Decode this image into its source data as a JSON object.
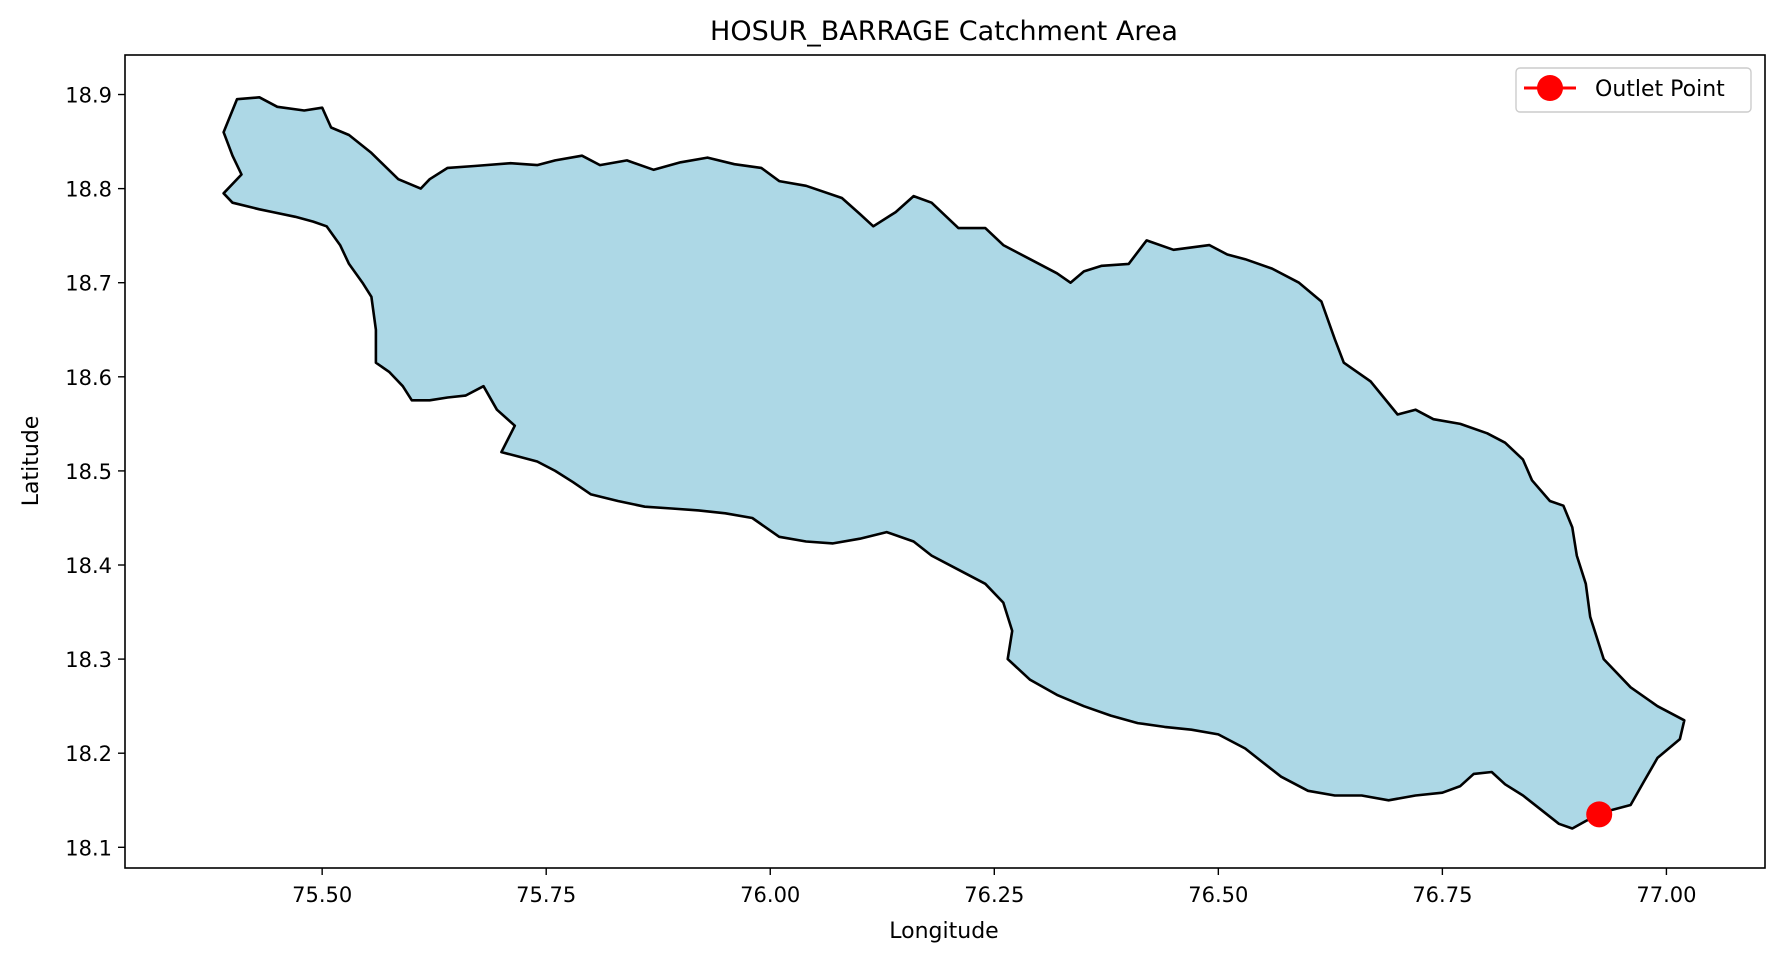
{
  "chart_data": {
    "type": "map",
    "title": "HOSUR_BARRAGE Catchment Area",
    "xlabel": "Longitude",
    "ylabel": "Latitude",
    "xlim": [
      75.28,
      77.11
    ],
    "ylim": [
      18.078,
      18.942
    ],
    "x_ticks": [
      "75.50",
      "75.75",
      "76.00",
      "76.25",
      "76.50",
      "76.75",
      "77.00"
    ],
    "y_ticks": [
      "18.1",
      "18.2",
      "18.3",
      "18.4",
      "18.5",
      "18.6",
      "18.7",
      "18.8",
      "18.9"
    ],
    "grid": false,
    "legend": {
      "position": "top-right",
      "entries": [
        "Outlet Point"
      ]
    },
    "colors": {
      "catchment_fill": "#add8e6",
      "catchment_edge": "#000000",
      "outlet": "#ff0000"
    },
    "outlet_point": {
      "lon": 76.925,
      "lat": 18.135,
      "name": "Outlet Point"
    },
    "catchment_boundary": [
      [
        75.405,
        18.895
      ],
      [
        75.43,
        18.897
      ],
      [
        75.45,
        18.887
      ],
      [
        75.48,
        18.883
      ],
      [
        75.5,
        18.886
      ],
      [
        75.51,
        18.865
      ],
      [
        75.53,
        18.857
      ],
      [
        75.555,
        18.838
      ],
      [
        75.585,
        18.81
      ],
      [
        75.61,
        18.8
      ],
      [
        75.62,
        18.81
      ],
      [
        75.64,
        18.822
      ],
      [
        75.67,
        18.824
      ],
      [
        75.71,
        18.827
      ],
      [
        75.74,
        18.825
      ],
      [
        75.76,
        18.83
      ],
      [
        75.79,
        18.835
      ],
      [
        75.81,
        18.825
      ],
      [
        75.84,
        18.83
      ],
      [
        75.87,
        18.82
      ],
      [
        75.9,
        18.828
      ],
      [
        75.93,
        18.833
      ],
      [
        75.96,
        18.826
      ],
      [
        75.99,
        18.822
      ],
      [
        76.01,
        18.808
      ],
      [
        76.04,
        18.803
      ],
      [
        76.08,
        18.79
      ],
      [
        76.1,
        18.773
      ],
      [
        76.115,
        18.76
      ],
      [
        76.14,
        18.775
      ],
      [
        76.16,
        18.792
      ],
      [
        76.18,
        18.785
      ],
      [
        76.21,
        18.758
      ],
      [
        76.24,
        18.758
      ],
      [
        76.26,
        18.74
      ],
      [
        76.29,
        18.725
      ],
      [
        76.32,
        18.71
      ],
      [
        76.335,
        18.7
      ],
      [
        76.35,
        18.712
      ],
      [
        76.37,
        18.718
      ],
      [
        76.4,
        18.72
      ],
      [
        76.42,
        18.745
      ],
      [
        76.45,
        18.735
      ],
      [
        76.49,
        18.74
      ],
      [
        76.51,
        18.73
      ],
      [
        76.53,
        18.725
      ],
      [
        76.56,
        18.715
      ],
      [
        76.59,
        18.7
      ],
      [
        76.615,
        18.68
      ],
      [
        76.63,
        18.64
      ],
      [
        76.64,
        18.615
      ],
      [
        76.67,
        18.595
      ],
      [
        76.7,
        18.56
      ],
      [
        76.72,
        18.565
      ],
      [
        76.74,
        18.555
      ],
      [
        76.77,
        18.55
      ],
      [
        76.8,
        18.54
      ],
      [
        76.82,
        18.53
      ],
      [
        76.84,
        18.512
      ],
      [
        76.85,
        18.49
      ],
      [
        76.87,
        18.468
      ],
      [
        76.885,
        18.463
      ],
      [
        76.895,
        18.44
      ],
      [
        76.9,
        18.41
      ],
      [
        76.91,
        18.38
      ],
      [
        76.915,
        18.345
      ],
      [
        76.93,
        18.3
      ],
      [
        76.96,
        18.27
      ],
      [
        76.99,
        18.25
      ],
      [
        77.02,
        18.235
      ],
      [
        77.015,
        18.215
      ],
      [
        76.99,
        18.195
      ],
      [
        76.975,
        18.17
      ],
      [
        76.96,
        18.145
      ],
      [
        76.94,
        18.14
      ],
      [
        76.925,
        18.135
      ],
      [
        76.91,
        18.128
      ],
      [
        76.895,
        18.12
      ],
      [
        76.88,
        18.125
      ],
      [
        76.86,
        18.14
      ],
      [
        76.84,
        18.155
      ],
      [
        76.82,
        18.167
      ],
      [
        76.805,
        18.18
      ],
      [
        76.785,
        18.178
      ],
      [
        76.77,
        18.165
      ],
      [
        76.75,
        18.158
      ],
      [
        76.72,
        18.155
      ],
      [
        76.69,
        18.15
      ],
      [
        76.66,
        18.155
      ],
      [
        76.63,
        18.155
      ],
      [
        76.6,
        18.16
      ],
      [
        76.57,
        18.175
      ],
      [
        76.55,
        18.19
      ],
      [
        76.53,
        18.205
      ],
      [
        76.5,
        18.22
      ],
      [
        76.47,
        18.225
      ],
      [
        76.44,
        18.228
      ],
      [
        76.41,
        18.232
      ],
      [
        76.38,
        18.24
      ],
      [
        76.35,
        18.25
      ],
      [
        76.32,
        18.262
      ],
      [
        76.29,
        18.278
      ],
      [
        76.265,
        18.3
      ],
      [
        76.27,
        18.33
      ],
      [
        76.26,
        18.36
      ],
      [
        76.24,
        18.38
      ],
      [
        76.21,
        18.395
      ],
      [
        76.18,
        18.41
      ],
      [
        76.16,
        18.425
      ],
      [
        76.13,
        18.435
      ],
      [
        76.1,
        18.428
      ],
      [
        76.07,
        18.423
      ],
      [
        76.04,
        18.425
      ],
      [
        76.01,
        18.43
      ],
      [
        75.98,
        18.45
      ],
      [
        75.95,
        18.455
      ],
      [
        75.92,
        18.458
      ],
      [
        75.89,
        18.46
      ],
      [
        75.86,
        18.462
      ],
      [
        75.83,
        18.468
      ],
      [
        75.8,
        18.475
      ],
      [
        75.78,
        18.488
      ],
      [
        75.76,
        18.5
      ],
      [
        75.74,
        18.51
      ],
      [
        75.72,
        18.515
      ],
      [
        75.7,
        18.52
      ],
      [
        75.715,
        18.548
      ],
      [
        75.695,
        18.565
      ],
      [
        75.68,
        18.59
      ],
      [
        75.66,
        18.58
      ],
      [
        75.64,
        18.578
      ],
      [
        75.62,
        18.575
      ],
      [
        75.6,
        18.575
      ],
      [
        75.59,
        18.59
      ],
      [
        75.575,
        18.605
      ],
      [
        75.56,
        18.615
      ],
      [
        75.56,
        18.65
      ],
      [
        75.555,
        18.685
      ],
      [
        75.545,
        18.7
      ],
      [
        75.53,
        18.72
      ],
      [
        75.52,
        18.74
      ],
      [
        75.505,
        18.76
      ],
      [
        75.49,
        18.765
      ],
      [
        75.47,
        18.77
      ],
      [
        75.445,
        18.775
      ],
      [
        75.43,
        18.778
      ],
      [
        75.4,
        18.785
      ],
      [
        75.39,
        18.795
      ],
      [
        75.41,
        18.815
      ],
      [
        75.4,
        18.835
      ],
      [
        75.39,
        18.86
      ]
    ]
  }
}
